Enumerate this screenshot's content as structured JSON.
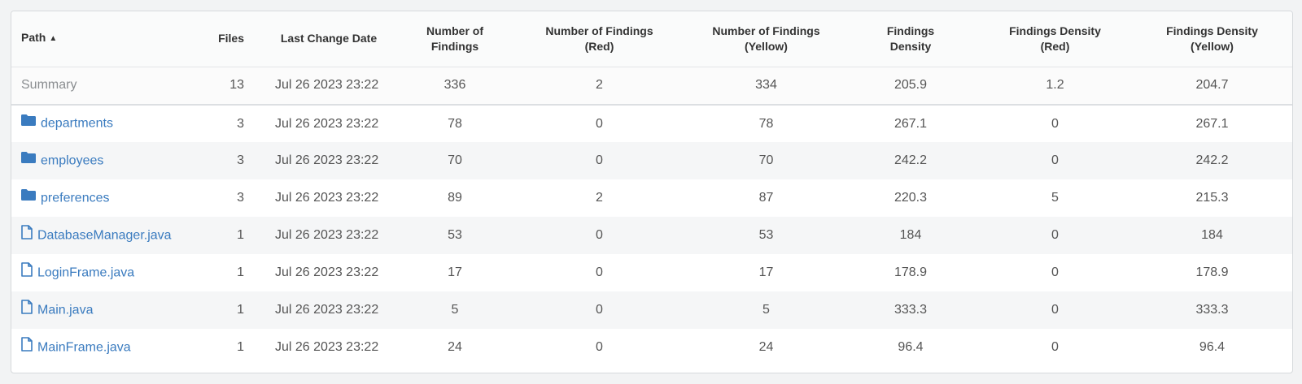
{
  "table": {
    "columns": [
      {
        "id": "path",
        "lines": [
          "Path"
        ],
        "sorted": "asc"
      },
      {
        "id": "files",
        "lines": [
          "Files"
        ]
      },
      {
        "id": "last_change",
        "lines": [
          "Last Change Date"
        ]
      },
      {
        "id": "findings",
        "lines": [
          "Number of",
          "Findings"
        ]
      },
      {
        "id": "findings_red",
        "lines": [
          "Number of Findings",
          "(Red)"
        ]
      },
      {
        "id": "findings_yellow",
        "lines": [
          "Number of Findings",
          "(Yellow)"
        ]
      },
      {
        "id": "density",
        "lines": [
          "Findings",
          "Density"
        ]
      },
      {
        "id": "density_red",
        "lines": [
          "Findings Density",
          "(Red)"
        ]
      },
      {
        "id": "density_yellow",
        "lines": [
          "Findings Density",
          "(Yellow)"
        ]
      }
    ],
    "summary": {
      "path": "Summary",
      "files": "13",
      "last_change": "Jul 26 2023 23:22",
      "findings": "336",
      "findings_red": "2",
      "findings_yellow": "334",
      "density": "205.9",
      "density_red": "1.2",
      "density_yellow": "204.7"
    },
    "rows": [
      {
        "type": "folder",
        "path": "departments",
        "files": "3",
        "last_change": "Jul 26 2023 23:22",
        "findings": "78",
        "findings_red": "0",
        "findings_yellow": "78",
        "density": "267.1",
        "density_red": "0",
        "density_yellow": "267.1"
      },
      {
        "type": "folder",
        "path": "employees",
        "files": "3",
        "last_change": "Jul 26 2023 23:22",
        "findings": "70",
        "findings_red": "0",
        "findings_yellow": "70",
        "density": "242.2",
        "density_red": "0",
        "density_yellow": "242.2"
      },
      {
        "type": "folder",
        "path": "preferences",
        "files": "3",
        "last_change": "Jul 26 2023 23:22",
        "findings": "89",
        "findings_red": "2",
        "findings_yellow": "87",
        "density": "220.3",
        "density_red": "5",
        "density_yellow": "215.3"
      },
      {
        "type": "file",
        "path": "DatabaseManager.java",
        "files": "1",
        "last_change": "Jul 26 2023 23:22",
        "findings": "53",
        "findings_red": "0",
        "findings_yellow": "53",
        "density": "184",
        "density_red": "0",
        "density_yellow": "184"
      },
      {
        "type": "file",
        "path": "LoginFrame.java",
        "files": "1",
        "last_change": "Jul 26 2023 23:22",
        "findings": "17",
        "findings_red": "0",
        "findings_yellow": "17",
        "density": "178.9",
        "density_red": "0",
        "density_yellow": "178.9"
      },
      {
        "type": "file",
        "path": "Main.java",
        "files": "1",
        "last_change": "Jul 26 2023 23:22",
        "findings": "5",
        "findings_red": "0",
        "findings_yellow": "5",
        "density": "333.3",
        "density_red": "0",
        "density_yellow": "333.3"
      },
      {
        "type": "file",
        "path": "MainFrame.java",
        "files": "1",
        "last_change": "Jul 26 2023 23:22",
        "findings": "24",
        "findings_red": "0",
        "findings_yellow": "24",
        "density": "96.4",
        "density_red": "0",
        "density_yellow": "96.4"
      }
    ]
  },
  "icons": {
    "folder": "folder-icon",
    "file": "file-icon",
    "sort_asc": "sort-ascending-icon"
  },
  "colors": {
    "link": "#3a7bbf",
    "folder_icon": "#3a7bbf",
    "summary_text": "#8a8d90"
  }
}
